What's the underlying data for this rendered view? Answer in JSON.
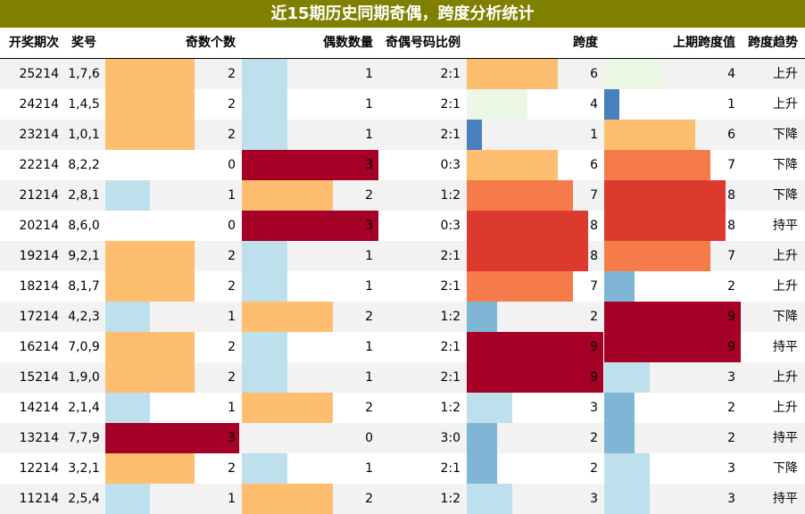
{
  "title": "近15期历史同期奇偶，跨度分析统计",
  "headers": {
    "period": "开奖期次",
    "number": "奖号",
    "odd": "奇数个数",
    "even": "偶数数量",
    "ratio": "奇偶号码比例",
    "span": "跨度",
    "prev_span": "上期跨度值",
    "trend": "跨度趋势"
  },
  "scale": {
    "odd_max": 3,
    "even_max": 3,
    "span_max": 9
  },
  "colors": {
    "c1": "#bde0ec",
    "c2": "#fdbe70",
    "c3": "#a50026",
    "span_low_light": "#ebf7e4",
    "span_1": "#4a7fbd",
    "span_2": "#7fb6d6",
    "span_3": "#bde0ec",
    "span_4": "#ebf7e4",
    "span_6": "#fdbe70",
    "span_7": "#f57c4a",
    "span_8": "#dc3a2e",
    "span_9": "#a50026"
  },
  "rows": [
    {
      "period": "25214",
      "number": "1,7,6",
      "odd": "2",
      "even": "1",
      "ratio": "2:1",
      "span": "6",
      "prev": "4",
      "trend": "上升"
    },
    {
      "period": "24214",
      "number": "1,4,5",
      "odd": "2",
      "even": "1",
      "ratio": "2:1",
      "span": "4",
      "prev": "1",
      "trend": "上升"
    },
    {
      "period": "23214",
      "number": "1,0,1",
      "odd": "2",
      "even": "1",
      "ratio": "2:1",
      "span": "1",
      "prev": "6",
      "trend": "下降"
    },
    {
      "period": "22214",
      "number": "8,2,2",
      "odd": "0",
      "even": "3",
      "ratio": "0:3",
      "span": "6",
      "prev": "7",
      "trend": "下降"
    },
    {
      "period": "21214",
      "number": "2,8,1",
      "odd": "1",
      "even": "2",
      "ratio": "1:2",
      "span": "7",
      "prev": "8",
      "trend": "下降"
    },
    {
      "period": "20214",
      "number": "8,6,0",
      "odd": "0",
      "even": "3",
      "ratio": "0:3",
      "span": "8",
      "prev": "8",
      "trend": "持平"
    },
    {
      "period": "19214",
      "number": "9,2,1",
      "odd": "2",
      "even": "1",
      "ratio": "2:1",
      "span": "8",
      "prev": "7",
      "trend": "上升"
    },
    {
      "period": "18214",
      "number": "8,1,7",
      "odd": "2",
      "even": "1",
      "ratio": "2:1",
      "span": "7",
      "prev": "2",
      "trend": "上升"
    },
    {
      "period": "17214",
      "number": "4,2,3",
      "odd": "1",
      "even": "2",
      "ratio": "1:2",
      "span": "2",
      "prev": "9",
      "trend": "下降"
    },
    {
      "period": "16214",
      "number": "7,0,9",
      "odd": "2",
      "even": "1",
      "ratio": "2:1",
      "span": "9",
      "prev": "9",
      "trend": "持平"
    },
    {
      "period": "15214",
      "number": "1,9,0",
      "odd": "2",
      "even": "1",
      "ratio": "2:1",
      "span": "9",
      "prev": "3",
      "trend": "上升"
    },
    {
      "period": "14214",
      "number": "2,1,4",
      "odd": "1",
      "even": "2",
      "ratio": "1:2",
      "span": "3",
      "prev": "2",
      "trend": "上升"
    },
    {
      "period": "13214",
      "number": "7,7,9",
      "odd": "3",
      "even": "0",
      "ratio": "3:0",
      "span": "2",
      "prev": "2",
      "trend": "持平"
    },
    {
      "period": "12214",
      "number": "3,2,1",
      "odd": "2",
      "even": "1",
      "ratio": "2:1",
      "span": "2",
      "prev": "3",
      "trend": "下降"
    },
    {
      "period": "11214",
      "number": "2,5,4",
      "odd": "1",
      "even": "2",
      "ratio": "1:2",
      "span": "3",
      "prev": "3",
      "trend": "持平"
    }
  ]
}
